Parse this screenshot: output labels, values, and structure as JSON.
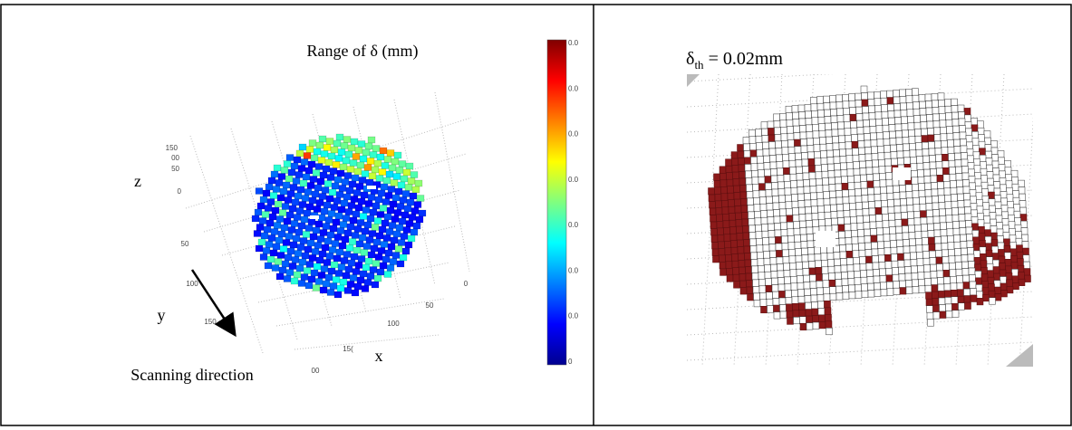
{
  "left_panel": {
    "title": "Range of δ (mm)",
    "axis_labels": {
      "z": "z",
      "y": "y",
      "x": "x"
    },
    "z_ticks": [
      "150",
      "00",
      "50",
      "0"
    ],
    "y_ticks": [
      "50",
      "100",
      "150",
      "00"
    ],
    "x_ticks": [
      "0",
      "50",
      "100",
      "15("
    ],
    "colorbar_ticks": [
      "0.0",
      "0.0",
      "0.0",
      "0.0",
      "0.0",
      "0.0",
      "0.0",
      "0"
    ],
    "caption": "Scanning direction"
  },
  "right_panel": {
    "label": {
      "symbol": "δ",
      "subscript": "th",
      "rest": " = 0.02mm"
    }
  }
}
